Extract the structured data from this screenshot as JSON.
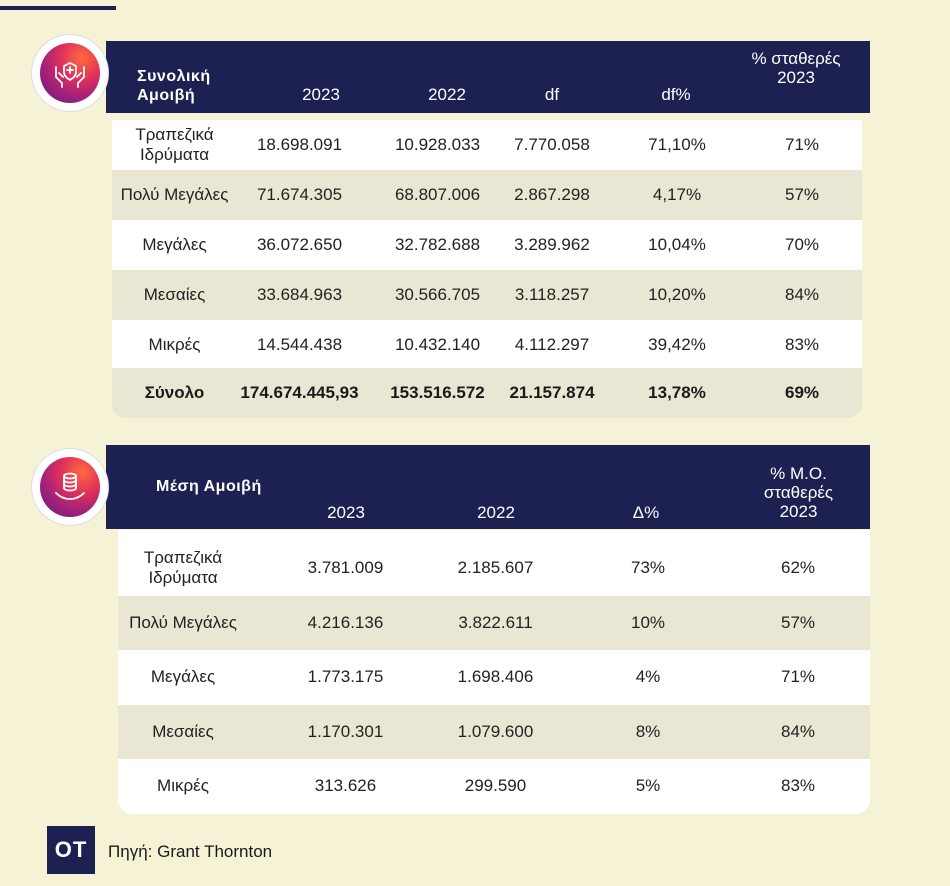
{
  "table1": {
    "label": "Συνολική Αμοιβή",
    "headers": [
      "2023",
      "2022",
      "df",
      "df%",
      "% σταθερές 2023"
    ],
    "rows": [
      {
        "category": "Τραπεζικά Ιδρύματα",
        "v2023": "18.698.091",
        "v2022": "10.928.033",
        "df": "7.770.058",
        "dfp": "71,10%",
        "fixed": "71%"
      },
      {
        "category": "Πολύ Μεγάλες",
        "v2023": "71.674.305",
        "v2022": "68.807.006",
        "df": "2.867.298",
        "dfp": "4,17%",
        "fixed": "57%"
      },
      {
        "category": "Μεγάλες",
        "v2023": "36.072.650",
        "v2022": "32.782.688",
        "df": "3.289.962",
        "dfp": "10,04%",
        "fixed": "70%"
      },
      {
        "category": "Μεσαίες",
        "v2023": "33.684.963",
        "v2022": "30.566.705",
        "df": "3.118.257",
        "dfp": "10,20%",
        "fixed": "84%"
      },
      {
        "category": "Μικρές",
        "v2023": "14.544.438",
        "v2022": "10.432.140",
        "df": "4.112.297",
        "dfp": "39,42%",
        "fixed": "83%"
      }
    ],
    "total": {
      "category": "Σύνολο",
      "v2023": "174.674.445,93",
      "v2022": "153.516.572",
      "df": "21.157.874",
      "dfp": "13,78%",
      "fixed": "69%"
    }
  },
  "table2": {
    "label": "Μέση Αμοιβή",
    "headers": [
      "2023",
      "2022",
      "Δ%",
      "% Μ.Ο. σταθερές 2023"
    ],
    "rows": [
      {
        "category": "Τραπεζικά Ιδρύματα",
        "v2023": "3.781.009",
        "v2022": "2.185.607",
        "dp": "73%",
        "fixed": "62%"
      },
      {
        "category": "Πολύ Μεγάλες",
        "v2023": "4.216.136",
        "v2022": "3.822.611",
        "dp": "10%",
        "fixed": "57%"
      },
      {
        "category": "Μεγάλες",
        "v2023": "1.773.175",
        "v2022": "1.698.406",
        "dp": "4%",
        "fixed": "71%"
      },
      {
        "category": "Μεσαίες",
        "v2023": "1.170.301",
        "v2022": "1.079.600",
        "dp": "8%",
        "fixed": "84%"
      },
      {
        "category": "Μικρές",
        "v2023": "313.626",
        "v2022": "299.590",
        "dp": "5%",
        "fixed": "83%"
      }
    ]
  },
  "footer": {
    "logo": "ΟΤ",
    "source": "Πηγή: Grant Thornton"
  },
  "icons": {
    "badge1": "hands-shield-icon",
    "badge2": "hand-coins-icon"
  },
  "colors": {
    "header": "#1d2152",
    "background": "#f5f2d5",
    "shade": "#e9e6d3",
    "accent": "#e0305a"
  }
}
